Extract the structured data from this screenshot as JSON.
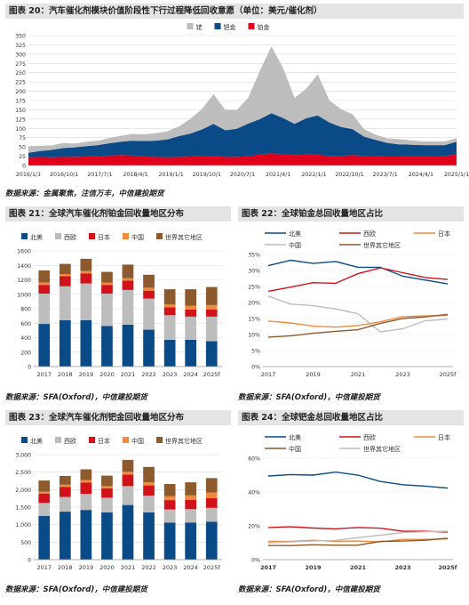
{
  "figures": [
    {
      "id": "fig20",
      "title": "图表 20：汽车催化剂模块价值阶段性下行过程降低回收意愿（单位：美元/催化剂）",
      "source": "数据来源：金属聚焦，注信万丰，中信建投期货",
      "chart_data": {
        "type": "area",
        "stacked": true,
        "x": [
          "2016/1/1",
          "2016/4/1",
          "2016/7/1",
          "2016/10/1",
          "2017/1/1",
          "2017/4/1",
          "2017/7/1",
          "2017/10/1",
          "2018/1/1",
          "2018/4/1",
          "2018/7/1",
          "2018/10/1",
          "2019/1/1",
          "2019/4/1",
          "2019/7/1",
          "2019/10/1",
          "2020/1/1",
          "2020/4/1",
          "2020/7/1",
          "2020/10/1",
          "2021/1/1",
          "2021/4/1",
          "2021/7/1",
          "2021/10/1",
          "2022/1/1",
          "2022/4/1",
          "2022/7/1",
          "2022/10/1",
          "2023/1/1",
          "2023/4/1",
          "2023/7/1",
          "2023/10/1",
          "2024/1/1",
          "2024/4/1",
          "2024/7/1",
          "2024/10/1",
          "2025/1/1",
          "2025/4/1"
        ],
        "x_tick_labels": [
          "2016/1/1",
          "2016/10/1",
          "2017/7/1",
          "2018/4/1",
          "2019/1/1",
          "2019/10/1",
          "2020/7/1",
          "2021/4/1",
          "2022/1/1",
          "2022/10/1",
          "2023/7/1",
          "2024/4/1",
          "2025/1/1"
        ],
        "series": [
          {
            "name": "铂金",
            "color": "#e0001b",
            "values": [
              22,
              23,
              22,
              23,
              23,
              24,
              25,
              27,
              28,
              27,
              24,
              23,
              22,
              23,
              24,
              25,
              26,
              23,
              23,
              25,
              30,
              33,
              30,
              28,
              29,
              29,
              26,
              26,
              28,
              26,
              25,
              24,
              24,
              25,
              25,
              25,
              26,
              30
            ]
          },
          {
            "name": "钯金",
            "color": "#0a4a86",
            "values": [
              12,
              16,
              20,
              24,
              26,
              28,
              30,
              33,
              36,
              40,
              42,
              44,
              48,
              56,
              62,
              72,
              86,
              72,
              76,
              88,
              95,
              108,
              98,
              84,
              98,
              106,
              90,
              78,
              70,
              52,
              44,
              37,
              33,
              31,
              30,
              30,
              29,
              34
            ]
          },
          {
            "name": "铑",
            "color": "#bdbdbd",
            "values": [
              18,
              14,
              12,
              14,
              10,
              12,
              12,
              14,
              16,
              18,
              18,
              20,
              22,
              26,
              40,
              55,
              80,
              55,
              50,
              70,
              130,
              180,
              135,
              70,
              80,
              110,
              60,
              48,
              40,
              20,
              14,
              12,
              14,
              12,
              10,
              10,
              10,
              10
            ]
          }
        ],
        "ylim": [
          0,
          350
        ],
        "yticks": [
          0,
          25,
          50,
          75,
          100,
          125,
          150,
          175,
          200,
          225,
          250,
          275,
          300,
          325,
          350
        ],
        "grid": true,
        "legend": "top"
      }
    },
    {
      "id": "fig21",
      "title": "图表 21：全球汽车催化剂铂金回收量地区分布",
      "source": "数据来源：SFA(Oxford)，中信建投期货",
      "chart_data": {
        "type": "bar",
        "stacked": true,
        "categories": [
          "2017",
          "2018",
          "2019",
          "2020",
          "2021",
          "2022",
          "2023",
          "2024",
          "2025f"
        ],
        "series": [
          {
            "name": "北美",
            "color": "#0a4a86",
            "values": [
              590,
              640,
              640,
              560,
              580,
              510,
              370,
              370,
              350
            ]
          },
          {
            "name": "西欧",
            "color": "#bdbdbd",
            "values": [
              420,
              470,
              510,
              450,
              480,
              430,
              340,
              320,
              340
            ]
          },
          {
            "name": "日本",
            "color": "#d0131a",
            "values": [
              120,
              140,
              140,
              120,
              130,
              110,
              110,
              100,
              100
            ]
          },
          {
            "name": "中国",
            "color": "#f08a3e",
            "values": [
              30,
              30,
              30,
              30,
              30,
              40,
              40,
              50,
              60
            ]
          },
          {
            "name": "世界其它地区",
            "color": "#8c5a2c",
            "values": [
              170,
              140,
              170,
              150,
              190,
              180,
              210,
              230,
              250
            ]
          }
        ],
        "ylim": [
          0,
          1600
        ],
        "yticks": [
          0,
          200,
          400,
          600,
          800,
          1000,
          1200,
          1400,
          1600
        ],
        "grid": true,
        "legend": "top"
      }
    },
    {
      "id": "fig22",
      "title": "图表 22：全球铂金总回收量地区占比",
      "source": "数据来源：SFA(Oxford)，中信建投期货",
      "chart_data": {
        "type": "line",
        "x": [
          "2017",
          "2018",
          "2019",
          "2020",
          "2021",
          "2022",
          "2023",
          "2024",
          "2025f"
        ],
        "x_tick_labels": [
          "2017",
          "2019",
          "2021",
          "2023",
          "2025f"
        ],
        "series": [
          {
            "name": "北美",
            "color": "#0a4a86",
            "values": [
              31.5,
              33.2,
              32.2,
              32.8,
              31.0,
              31.0,
              28.2,
              27.0,
              25.8
            ]
          },
          {
            "name": "西欧",
            "color": "#d0131a",
            "values": [
              23.5,
              24.8,
              26.2,
              26.0,
              29.0,
              30.8,
              29.3,
              27.8,
              27.2
            ]
          },
          {
            "name": "日本",
            "color": "#f08a3e",
            "values": [
              14.2,
              13.6,
              12.6,
              12.3,
              12.8,
              14.0,
              15.6,
              15.8,
              16.0
            ]
          },
          {
            "name": "中国",
            "color": "#bdbdbd",
            "values": [
              22.0,
              19.5,
              19.0,
              18.0,
              16.5,
              10.8,
              11.8,
              14.3,
              14.8
            ]
          },
          {
            "name": "世界其它地区",
            "color": "#8c5a2c",
            "values": [
              9.2,
              9.6,
              10.4,
              11.0,
              11.5,
              13.5,
              15.0,
              15.5,
              16.3
            ]
          }
        ],
        "ylim": [
          0,
          35
        ],
        "yticks": [
          0,
          5,
          10,
          15,
          20,
          25,
          30,
          35
        ],
        "ytick_labels": [
          "0%",
          "5%",
          "10%",
          "15%",
          "20%",
          "25%",
          "30%",
          "35%"
        ],
        "grid": true,
        "legend": "top"
      }
    },
    {
      "id": "fig23",
      "title": "图表 23：全球汽车催化剂钯金回收量地区分布",
      "source": "数据来源：SFA(Oxford)，中信建投期货",
      "chart_data": {
        "type": "bar",
        "stacked": true,
        "categories": [
          "2017",
          "2018",
          "2019",
          "2020",
          "2021",
          "2022",
          "2023",
          "2024",
          "2025f"
        ],
        "series": [
          {
            "name": "北美",
            "color": "#0a4a86",
            "values": [
              1250,
              1370,
              1420,
              1350,
              1560,
              1350,
              1060,
              1060,
              1080
            ]
          },
          {
            "name": "西欧",
            "color": "#bdbdbd",
            "values": [
              370,
              420,
              460,
              420,
              540,
              480,
              370,
              380,
              400
            ]
          },
          {
            "name": "日本",
            "color": "#d0131a",
            "values": [
              270,
              290,
              320,
              270,
              330,
              290,
              270,
              270,
              280
            ]
          },
          {
            "name": "中国",
            "color": "#f08a3e",
            "values": [
              50,
              60,
              70,
              60,
              80,
              90,
              110,
              130,
              160
            ]
          },
          {
            "name": "世界其它地区",
            "color": "#8c5a2c",
            "values": [
              320,
              250,
              310,
              300,
              340,
              440,
              350,
              370,
              410
            ]
          }
        ],
        "ylim": [
          0,
          3000
        ],
        "yticks": [
          0,
          500,
          1000,
          1500,
          2000,
          2500,
          3000
        ],
        "ytick_labels": [
          "0",
          "500",
          "1,000",
          "1,500",
          "2,000",
          "2,500",
          "3,000"
        ],
        "grid": true,
        "legend": "top"
      }
    },
    {
      "id": "fig24",
      "title": "图表 24：全球钯金总回收量地区占比",
      "source": "数据来源：SFA(Oxford)，中信建投期货",
      "chart_data": {
        "type": "line",
        "x": [
          "2017",
          "2018",
          "2019",
          "2020",
          "2021",
          "2022",
          "2023",
          "2024",
          "2025f"
        ],
        "x_tick_labels": [
          "2017",
          "2019",
          "2021",
          "2023",
          "2025f"
        ],
        "series": [
          {
            "name": "北美",
            "color": "#0a4a86",
            "values": [
              49.5,
              50.3,
              50.0,
              51.8,
              50.0,
              46.2,
              44.3,
              43.5,
              42.3
            ]
          },
          {
            "name": "西欧",
            "color": "#d0131a",
            "values": [
              19.0,
              19.4,
              18.7,
              18.2,
              19.0,
              18.6,
              16.8,
              16.8,
              16.3
            ]
          },
          {
            "name": "日本",
            "color": "#f08a3e",
            "values": [
              10.8,
              10.8,
              11.5,
              10.8,
              11.0,
              10.5,
              12.0,
              12.0,
              12.2
            ]
          },
          {
            "name": "中国",
            "color": "#8c5a2c",
            "values": [
              8.3,
              8.3,
              8.8,
              8.5,
              8.5,
              10.8,
              11.0,
              11.5,
              12.7
            ]
          },
          {
            "name": "世界其它地区",
            "color": "#bdbdbd",
            "values": [
              10.0,
              10.5,
              11.0,
              11.3,
              13.0,
              14.5,
              16.0,
              16.5,
              16.8
            ]
          }
        ],
        "ylim": [
          0,
          60
        ],
        "yticks": [
          0,
          20,
          40,
          60
        ],
        "ytick_labels": [
          "0%",
          "20%",
          "40%",
          "60%"
        ],
        "grid": true,
        "legend": "top"
      }
    }
  ]
}
